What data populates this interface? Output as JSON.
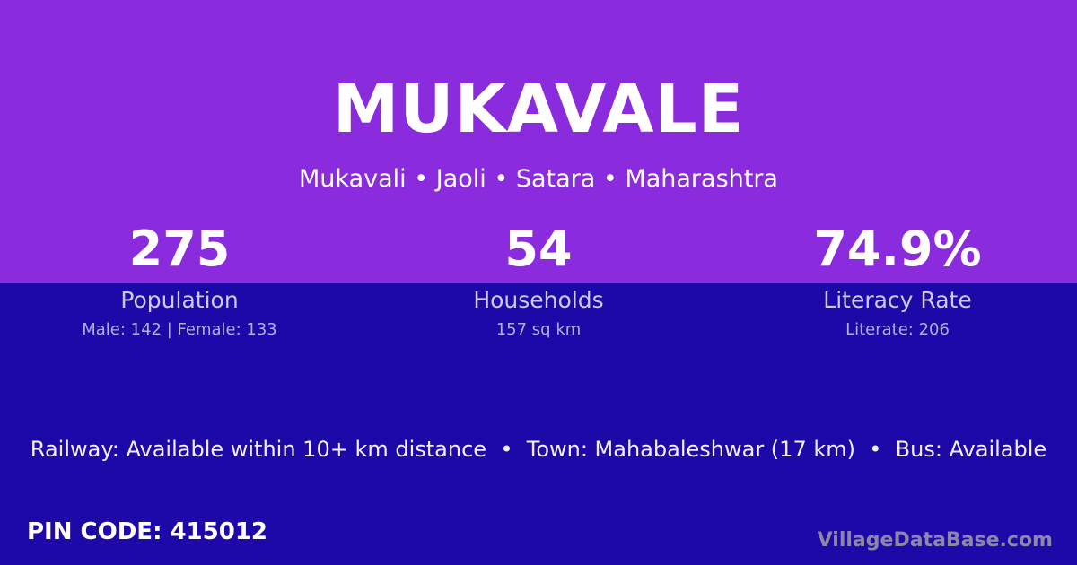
{
  "card": {
    "title": "MUKAVALE",
    "subtitle": "Mukavali • Jaoli • Satara • Maharashtra",
    "stats": [
      {
        "value": "275",
        "label": "Population",
        "detail": "Male: 142 | Female: 133"
      },
      {
        "value": "54",
        "label": "Households",
        "detail": "157 sq km"
      },
      {
        "value": "74.9%",
        "label": "Literacy Rate",
        "detail": "Literate: 206"
      }
    ],
    "info_line": "Railway: Available within 10+ km distance  •  Town: Mahabaleshwar (17 km)  •  Bus: Available",
    "pin": {
      "label": "PIN CODE:",
      "value": "415012"
    },
    "watermark": "VillageDataBase.com",
    "colors": {
      "top_bg": "#8B2BDE",
      "bottom_bg": "#1D09A7",
      "heading_text": "#FFFFFF",
      "label_text": "#CFC8EF",
      "detail_text": "#B4ACDD",
      "info_text": "#F3F0FC",
      "watermark_text": "#8B87A4"
    }
  }
}
